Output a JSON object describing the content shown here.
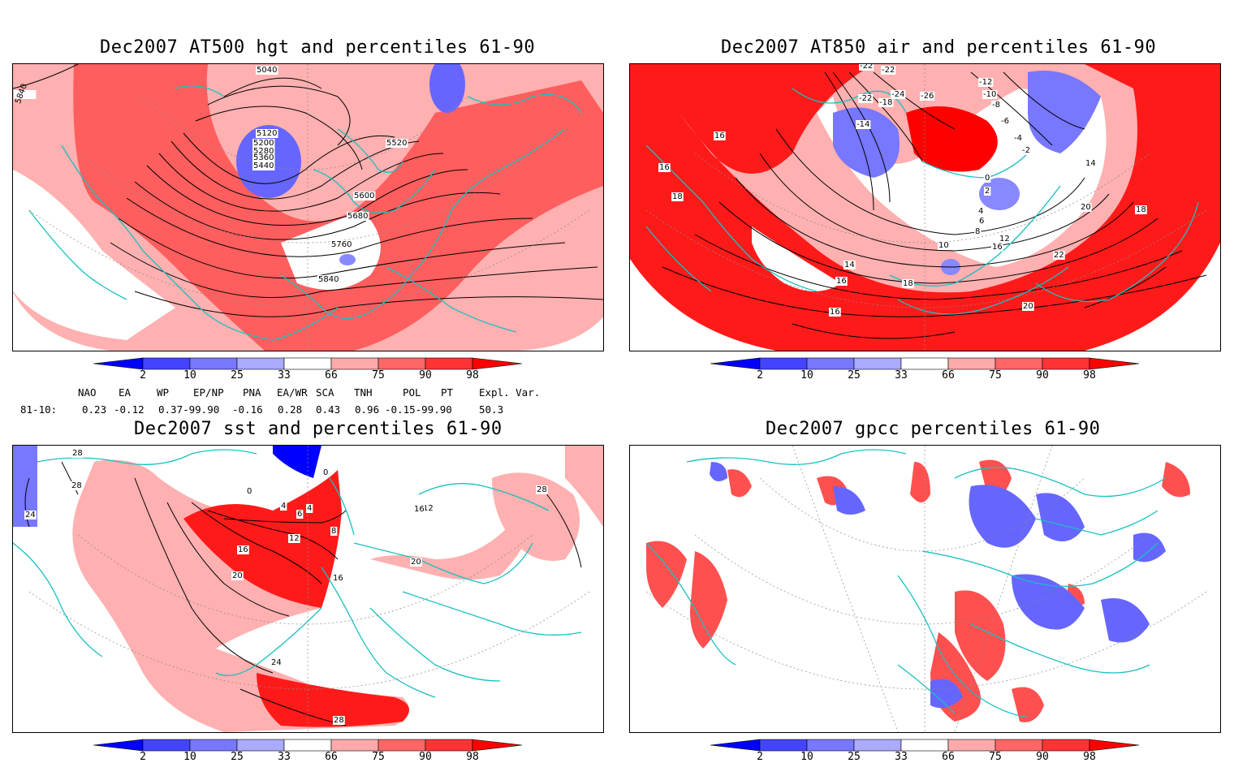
{
  "panels": [
    {
      "title": "Dec2007 AT500 hgt and percentiles 61-90",
      "contour_labels": [
        "5040",
        "5120",
        "5200",
        "5280",
        "5360",
        "5440",
        "5520",
        "5600",
        "5680",
        "5760",
        "5840",
        "5840"
      ]
    },
    {
      "title": "Dec2007 AT850 air and percentiles 61-90",
      "contour_labels": [
        "-22",
        "-22",
        "-26",
        "-24",
        "-22",
        "-18",
        "-14",
        "-12",
        "-10",
        "-8",
        "-6",
        "-4",
        "-2",
        "0",
        "2",
        "4",
        "6",
        "8",
        "10",
        "12",
        "14",
        "14",
        "16",
        "16",
        "16",
        "16",
        "16",
        "18",
        "18",
        "18",
        "20",
        "20",
        "22"
      ]
    },
    {
      "title": "Dec2007 sst and percentiles 61-90",
      "contour_labels": [
        "28",
        "28",
        "28",
        "24",
        "0",
        "0",
        "4",
        "4",
        "6",
        "8",
        "12",
        "16",
        "16",
        "20",
        "20",
        "12",
        "16",
        "24",
        "28"
      ]
    },
    {
      "title": "Dec2007 gpcc percentiles 61-90",
      "contour_labels": []
    }
  ],
  "colorbar": {
    "labels": [
      "2",
      "10",
      "25",
      "33",
      "66",
      "75",
      "90",
      "98"
    ],
    "colors": [
      "#0000ff",
      "#4444ff",
      "#7777ff",
      "#aaaaff",
      "#ffffff",
      "#ffaaaa",
      "#ff6666",
      "#ff3333",
      "#ff0000"
    ]
  },
  "indices": {
    "headers": [
      "NAO",
      "EA",
      "WP",
      "EP/NP",
      "PNA",
      "EA/WR",
      "SCA",
      "TNH",
      "POL",
      "PT",
      "Expl. Var."
    ],
    "row_label": "81-10:",
    "values": [
      "0.23",
      "-0.12",
      "0.37-99.90",
      "-0.16",
      "0.28",
      "0.43",
      "0.96",
      "-0.15-99.90",
      "50.3"
    ]
  },
  "colors": {
    "coast": "#19c0c0",
    "high": "#ff2a2a",
    "high_light": "#ffb0b0",
    "low": "#6666ff",
    "low_light": "#aaaaff"
  }
}
